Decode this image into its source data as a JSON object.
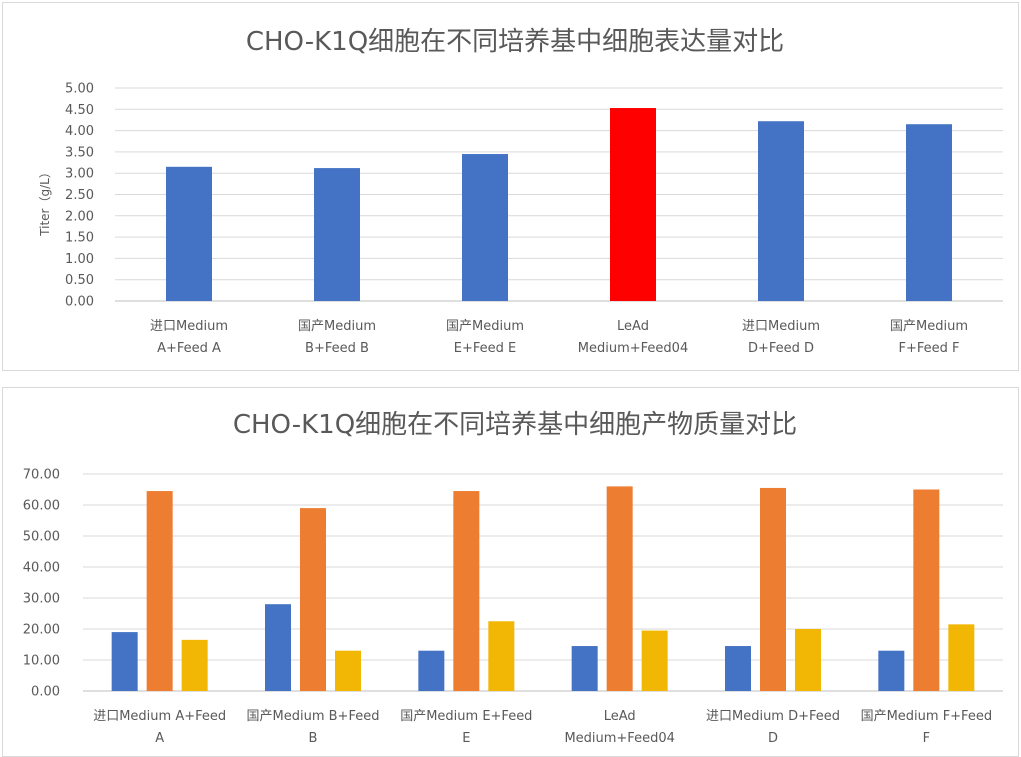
{
  "chart_data": [
    {
      "type": "bar",
      "title": "CHO-K1Q细胞在不同培养基中细胞表达量对比",
      "ylabel": "Titer（g/L）",
      "xlabel": "",
      "ylim": [
        0,
        5
      ],
      "yticks": [
        "0.00",
        "0.50",
        "1.00",
        "1.50",
        "2.00",
        "2.50",
        "3.00",
        "3.50",
        "4.00",
        "4.50",
        "5.00"
      ],
      "grid": true,
      "legend": "none",
      "categories": [
        [
          "进口Medium",
          "A+Feed   A"
        ],
        [
          "国产Medium",
          "B+Feed   B"
        ],
        [
          "国产Medium",
          "E+Feed   E"
        ],
        [
          "LeAd",
          "Medium+Feed04"
        ],
        [
          "进口Medium",
          "D+Feed   D"
        ],
        [
          "国产Medium",
          "F+Feed   F"
        ]
      ],
      "values": [
        3.15,
        3.12,
        3.45,
        4.53,
        4.22,
        4.15
      ],
      "colors": [
        "#4472c4",
        "#4472c4",
        "#4472c4",
        "#ff0000",
        "#4472c4",
        "#4472c4"
      ]
    },
    {
      "type": "bar",
      "title": "CHO-K1Q细胞在不同培养基中细胞产物质量对比",
      "ylabel": "",
      "xlabel": "",
      "ylim": [
        0,
        70
      ],
      "yticks": [
        "0.00",
        "10.00",
        "20.00",
        "30.00",
        "40.00",
        "50.00",
        "60.00",
        "70.00"
      ],
      "grid": true,
      "legend": "none",
      "categories": [
        [
          "进口Medium   A+Feed",
          "A"
        ],
        [
          "国产Medium   B+Feed",
          "B"
        ],
        [
          "国产Medium   E+Feed",
          "E"
        ],
        [
          "LeAd",
          "Medium+Feed04"
        ],
        [
          "进口Medium   D+Feed",
          "D"
        ],
        [
          "国产Medium   F+Feed",
          "F"
        ]
      ],
      "series": [
        {
          "values": [
            19.0,
            28.0,
            13.0,
            14.5,
            14.5,
            13.0
          ],
          "color": "#4472c4"
        },
        {
          "values": [
            64.5,
            59.0,
            64.5,
            66.0,
            65.5,
            65.0
          ],
          "color": "#ed7d31"
        },
        {
          "values": [
            16.5,
            13.0,
            22.5,
            19.5,
            20.0,
            21.5
          ],
          "color": "#f2b705"
        }
      ]
    }
  ]
}
